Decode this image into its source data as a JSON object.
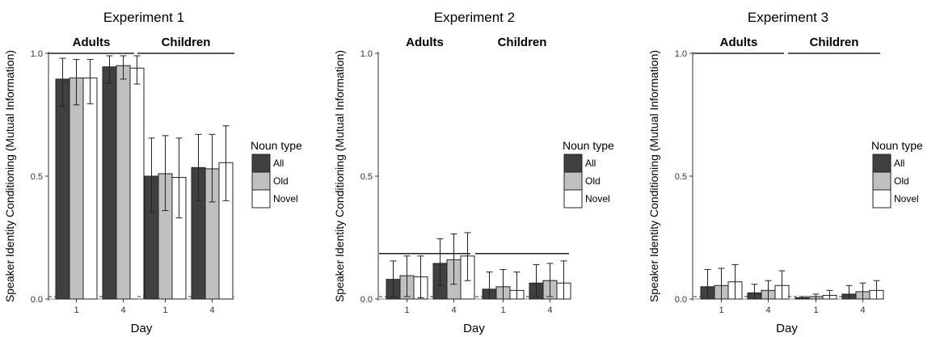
{
  "y_label": "Speaker Identity Conditioning (Mutual Information)",
  "x_label": "Day",
  "legend": {
    "title": "Noun type",
    "items": [
      {
        "label": "All",
        "color": "#404040"
      },
      {
        "label": "Old",
        "color": "#c0c0c0"
      },
      {
        "label": "Novel",
        "color": "#ffffff"
      }
    ]
  },
  "y_ticks": [
    "0.0",
    "0.5",
    "1.0"
  ],
  "chart_data": [
    {
      "type": "bar",
      "title": "Experiment 1",
      "panels": [
        "Adults",
        "Children"
      ],
      "categories": [
        "1",
        "4"
      ],
      "ylim": [
        0,
        1.0
      ],
      "baseline": 0.01,
      "grid": false,
      "legend_position": "right",
      "series": [
        {
          "name": "All",
          "values": {
            "Adults": [
              0.895,
              0.945
            ],
            "Children": [
              0.5,
              0.535
            ]
          },
          "lower": {
            "Adults": [
              0.785,
              0.88
            ],
            "Children": [
              0.355,
              0.4
            ]
          },
          "upper": {
            "Adults": [
              0.98,
              0.99
            ],
            "Children": [
              0.655,
              0.67
            ]
          }
        },
        {
          "name": "Old",
          "values": {
            "Adults": [
              0.9,
              0.95
            ],
            "Children": [
              0.51,
              0.53
            ]
          },
          "lower": {
            "Adults": [
              0.79,
              0.895
            ],
            "Children": [
              0.36,
              0.395
            ]
          },
          "upper": {
            "Adults": [
              0.975,
              0.99
            ],
            "Children": [
              0.665,
              0.67
            ]
          }
        },
        {
          "name": "Novel",
          "values": {
            "Adults": [
              0.9,
              0.94
            ],
            "Children": [
              0.495,
              0.555
            ]
          },
          "lower": {
            "Adults": [
              0.795,
              0.875
            ],
            "Children": [
              0.33,
              0.4
            ]
          },
          "upper": {
            "Adults": [
              0.975,
              0.99
            ],
            "Children": [
              0.655,
              0.705
            ]
          }
        }
      ]
    },
    {
      "type": "bar",
      "title": "Experiment 2",
      "panels": [
        "Adults",
        "Children"
      ],
      "categories": [
        "1",
        "4"
      ],
      "ylim": [
        0,
        1.0
      ],
      "baseline": 0.01,
      "grid": false,
      "legend_position": "right",
      "series": [
        {
          "name": "All",
          "values": {
            "Adults": [
              0.08,
              0.145
            ],
            "Children": [
              0.04,
              0.065
            ]
          },
          "lower": {
            "Adults": [
              0.01,
              0.055
            ],
            "Children": [
              0.0,
              0.01
            ]
          },
          "upper": {
            "Adults": [
              0.155,
              0.245
            ],
            "Children": [
              0.11,
              0.14
            ]
          }
        },
        {
          "name": "Old",
          "values": {
            "Adults": [
              0.095,
              0.16
            ],
            "Children": [
              0.05,
              0.075
            ]
          },
          "lower": {
            "Adults": [
              0.01,
              0.06
            ],
            "Children": [
              0.0,
              0.01
            ]
          },
          "upper": {
            "Adults": [
              0.175,
              0.265
            ],
            "Children": [
              0.12,
              0.145
            ]
          }
        },
        {
          "name": "Novel",
          "values": {
            "Adults": [
              0.09,
              0.175
            ],
            "Children": [
              0.035,
              0.065
            ]
          },
          "lower": {
            "Adults": [
              0.005,
              0.075
            ],
            "Children": [
              0.0,
              0.0
            ]
          },
          "upper": {
            "Adults": [
              0.175,
              0.27
            ],
            "Children": [
              0.11,
              0.155
            ]
          }
        }
      ]
    },
    {
      "type": "bar",
      "title": "Experiment 3",
      "panels": [
        "Adults",
        "Children"
      ],
      "categories": [
        "1",
        "4"
      ],
      "ylim": [
        0,
        1.0
      ],
      "baseline": 0.01,
      "grid": false,
      "legend_position": "right",
      "series": [
        {
          "name": "All",
          "values": {
            "Adults": [
              0.05,
              0.025
            ],
            "Children": [
              0.005,
              0.02
            ]
          },
          "lower": {
            "Adults": [
              0.0,
              0.0
            ],
            "Children": [
              0.0,
              0.0
            ]
          },
          "upper": {
            "Adults": [
              0.12,
              0.06
            ],
            "Children": [
              0.01,
              0.055
            ]
          }
        },
        {
          "name": "Old",
          "values": {
            "Adults": [
              0.055,
              0.035
            ],
            "Children": [
              0.01,
              0.03
            ]
          },
          "lower": {
            "Adults": [
              0.0,
              0.0
            ],
            "Children": [
              0.0,
              0.0
            ]
          },
          "upper": {
            "Adults": [
              0.125,
              0.075
            ],
            "Children": [
              0.02,
              0.065
            ]
          }
        },
        {
          "name": "Novel",
          "values": {
            "Adults": [
              0.07,
              0.055
            ],
            "Children": [
              0.015,
              0.035
            ]
          },
          "lower": {
            "Adults": [
              0.0,
              0.0
            ],
            "Children": [
              0.0,
              0.0
            ]
          },
          "upper": {
            "Adults": [
              0.14,
              0.115
            ],
            "Children": [
              0.035,
              0.075
            ]
          }
        }
      ]
    }
  ]
}
